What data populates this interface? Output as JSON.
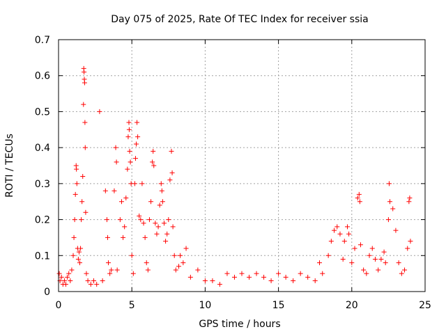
{
  "chart_data": {
    "type": "scatter",
    "title": "Day 075 of 2025, Rate Of TEC Index for receiver ssia",
    "xlabel": "GPS time / hours",
    "ylabel": "ROTI / TECUs",
    "xlim": [
      0,
      25
    ],
    "ylim": [
      0,
      0.7
    ],
    "xticks": [
      0,
      5,
      10,
      15,
      20,
      25
    ],
    "xtick_labels": [
      "0",
      "5",
      "10",
      "15",
      "20",
      "25"
    ],
    "yticks": [
      0,
      0.1,
      0.2,
      0.3,
      0.4,
      0.5,
      0.6,
      0.7
    ],
    "ytick_labels": [
      "0",
      "0.1",
      "0.2",
      "0.3",
      "0.4",
      "0.5",
      "0.6",
      "0.7"
    ],
    "grid": true,
    "marker": "+",
    "color": "#ff0000",
    "series": [
      {
        "name": "ROTI",
        "points": [
          [
            0.05,
            0.05
          ],
          [
            0.1,
            0.03
          ],
          [
            0.2,
            0.04
          ],
          [
            0.3,
            0.02
          ],
          [
            0.4,
            0.03
          ],
          [
            0.5,
            0.02
          ],
          [
            0.6,
            0.04
          ],
          [
            0.7,
            0.05
          ],
          [
            0.8,
            0.03
          ],
          [
            0.9,
            0.06
          ],
          [
            1.0,
            0.1
          ],
          [
            1.05,
            0.15
          ],
          [
            1.1,
            0.2
          ],
          [
            1.15,
            0.27
          ],
          [
            1.2,
            0.35
          ],
          [
            1.22,
            0.34
          ],
          [
            1.25,
            0.3
          ],
          [
            1.3,
            0.12
          ],
          [
            1.35,
            0.09
          ],
          [
            1.4,
            0.11
          ],
          [
            1.45,
            0.08
          ],
          [
            1.5,
            0.12
          ],
          [
            1.55,
            0.2
          ],
          [
            1.6,
            0.25
          ],
          [
            1.65,
            0.32
          ],
          [
            1.7,
            0.52
          ],
          [
            1.72,
            0.62
          ],
          [
            1.74,
            0.61
          ],
          [
            1.76,
            0.59
          ],
          [
            1.78,
            0.58
          ],
          [
            1.8,
            0.47
          ],
          [
            1.82,
            0.4
          ],
          [
            1.85,
            0.22
          ],
          [
            1.9,
            0.05
          ],
          [
            2.0,
            0.03
          ],
          [
            2.2,
            0.02
          ],
          [
            2.4,
            0.03
          ],
          [
            2.6,
            0.02
          ],
          [
            2.8,
            0.5
          ],
          [
            3.0,
            0.03
          ],
          [
            3.2,
            0.28
          ],
          [
            3.3,
            0.2
          ],
          [
            3.35,
            0.15
          ],
          [
            3.4,
            0.08
          ],
          [
            3.5,
            0.05
          ],
          [
            3.6,
            0.06
          ],
          [
            3.8,
            0.28
          ],
          [
            3.9,
            0.4
          ],
          [
            3.95,
            0.36
          ],
          [
            4.0,
            0.06
          ],
          [
            4.2,
            0.2
          ],
          [
            4.3,
            0.25
          ],
          [
            4.4,
            0.15
          ],
          [
            4.5,
            0.18
          ],
          [
            4.6,
            0.26
          ],
          [
            4.7,
            0.34
          ],
          [
            4.75,
            0.43
          ],
          [
            4.8,
            0.47
          ],
          [
            4.82,
            0.45
          ],
          [
            4.85,
            0.39
          ],
          [
            4.9,
            0.36
          ],
          [
            4.95,
            0.3
          ],
          [
            5.0,
            0.1
          ],
          [
            5.1,
            0.05
          ],
          [
            5.2,
            0.3
          ],
          [
            5.25,
            0.37
          ],
          [
            5.3,
            0.41
          ],
          [
            5.35,
            0.47
          ],
          [
            5.4,
            0.43
          ],
          [
            5.5,
            0.21
          ],
          [
            5.6,
            0.2
          ],
          [
            5.7,
            0.3
          ],
          [
            5.8,
            0.19
          ],
          [
            5.9,
            0.15
          ],
          [
            6.0,
            0.08
          ],
          [
            6.1,
            0.06
          ],
          [
            6.2,
            0.2
          ],
          [
            6.3,
            0.25
          ],
          [
            6.4,
            0.36
          ],
          [
            6.45,
            0.39
          ],
          [
            6.5,
            0.35
          ],
          [
            6.6,
            0.19
          ],
          [
            6.7,
            0.16
          ],
          [
            6.8,
            0.18
          ],
          [
            6.9,
            0.24
          ],
          [
            7.0,
            0.3
          ],
          [
            7.05,
            0.28
          ],
          [
            7.1,
            0.25
          ],
          [
            7.2,
            0.19
          ],
          [
            7.3,
            0.14
          ],
          [
            7.4,
            0.16
          ],
          [
            7.5,
            0.2
          ],
          [
            7.6,
            0.31
          ],
          [
            7.7,
            0.39
          ],
          [
            7.75,
            0.33
          ],
          [
            7.8,
            0.18
          ],
          [
            7.9,
            0.1
          ],
          [
            8.0,
            0.06
          ],
          [
            8.2,
            0.07
          ],
          [
            8.3,
            0.1
          ],
          [
            8.5,
            0.08
          ],
          [
            8.7,
            0.12
          ],
          [
            9.0,
            0.04
          ],
          [
            9.5,
            0.06
          ],
          [
            10.0,
            0.03
          ],
          [
            10.5,
            0.03
          ],
          [
            11.0,
            0.02
          ],
          [
            11.5,
            0.05
          ],
          [
            12.0,
            0.04
          ],
          [
            12.5,
            0.05
          ],
          [
            13.0,
            0.04
          ],
          [
            13.5,
            0.05
          ],
          [
            14.0,
            0.04
          ],
          [
            14.5,
            0.03
          ],
          [
            15.0,
            0.05
          ],
          [
            15.5,
            0.04
          ],
          [
            16.0,
            0.03
          ],
          [
            16.5,
            0.05
          ],
          [
            17.0,
            0.04
          ],
          [
            17.5,
            0.03
          ],
          [
            17.8,
            0.08
          ],
          [
            18.0,
            0.05
          ],
          [
            18.4,
            0.1
          ],
          [
            18.6,
            0.14
          ],
          [
            18.8,
            0.17
          ],
          [
            19.0,
            0.18
          ],
          [
            19.2,
            0.16
          ],
          [
            19.4,
            0.09
          ],
          [
            19.5,
            0.14
          ],
          [
            19.7,
            0.18
          ],
          [
            19.8,
            0.16
          ],
          [
            20.0,
            0.08
          ],
          [
            20.2,
            0.12
          ],
          [
            20.4,
            0.26
          ],
          [
            20.5,
            0.27
          ],
          [
            20.55,
            0.25
          ],
          [
            20.6,
            0.13
          ],
          [
            20.8,
            0.06
          ],
          [
            21.0,
            0.05
          ],
          [
            21.2,
            0.1
          ],
          [
            21.4,
            0.12
          ],
          [
            21.6,
            0.09
          ],
          [
            21.8,
            0.06
          ],
          [
            22.0,
            0.09
          ],
          [
            22.2,
            0.11
          ],
          [
            22.3,
            0.08
          ],
          [
            22.5,
            0.2
          ],
          [
            22.55,
            0.3
          ],
          [
            22.6,
            0.25
          ],
          [
            22.8,
            0.23
          ],
          [
            23.0,
            0.17
          ],
          [
            23.2,
            0.08
          ],
          [
            23.4,
            0.05
          ],
          [
            23.6,
            0.06
          ],
          [
            23.8,
            0.12
          ],
          [
            23.9,
            0.25
          ],
          [
            23.95,
            0.26
          ],
          [
            24.0,
            0.14
          ]
        ]
      }
    ]
  }
}
